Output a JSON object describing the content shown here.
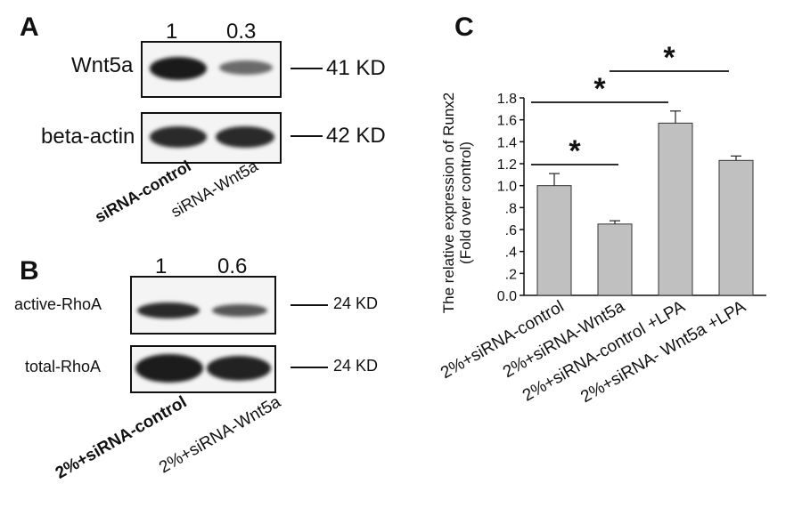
{
  "panel_a": {
    "letter": "A",
    "lane_values": [
      "1",
      "0.3"
    ],
    "rows": [
      {
        "label": "Wnt5a",
        "marker": "41 KD"
      },
      {
        "label": "beta-actin",
        "marker": "42 KD"
      }
    ],
    "lanes": [
      "siRNA-control",
      "siRNA-Wnt5a"
    ]
  },
  "panel_b": {
    "letter": "B",
    "lane_values": [
      "1",
      "0.6"
    ],
    "rows": [
      {
        "label": "active-RhoA",
        "marker": "24 KD"
      },
      {
        "label": "total-RhoA",
        "marker": "24 KD"
      }
    ],
    "lanes": [
      "2%+siRNA-control",
      "2%+siRNA-Wnt5a"
    ]
  },
  "panel_c": {
    "letter": "C",
    "significance_mark": "*"
  },
  "chart_data": {
    "type": "bar",
    "ylabel": "The relative expression of Runx2 (Fold over control)",
    "ylabel_line1": "The relative expression of Runx2",
    "ylabel_line2": "(Fold over control)",
    "ylim": [
      0,
      1.8
    ],
    "yticks": [
      "0.0",
      ".2",
      ".4",
      ".6",
      ".8",
      "1.0",
      "1.2",
      "1.4",
      "1.6",
      "1.8"
    ],
    "categories": [
      "2%+siRNA-control",
      "2%+siRNA-Wnt5a",
      "2%+siRNA-control +LPA",
      "2%+siRNA- Wnt5a +LPA"
    ],
    "values": [
      1.0,
      0.65,
      1.57,
      1.23
    ],
    "errors": [
      0.11,
      0.03,
      0.11,
      0.04
    ],
    "bar_color": "#c0c0c0",
    "significance": [
      {
        "from": 0,
        "to": 1,
        "label": "*"
      },
      {
        "from": 0,
        "to": 2,
        "label": "*"
      },
      {
        "from": 1,
        "to": 3,
        "label": "*"
      }
    ]
  }
}
